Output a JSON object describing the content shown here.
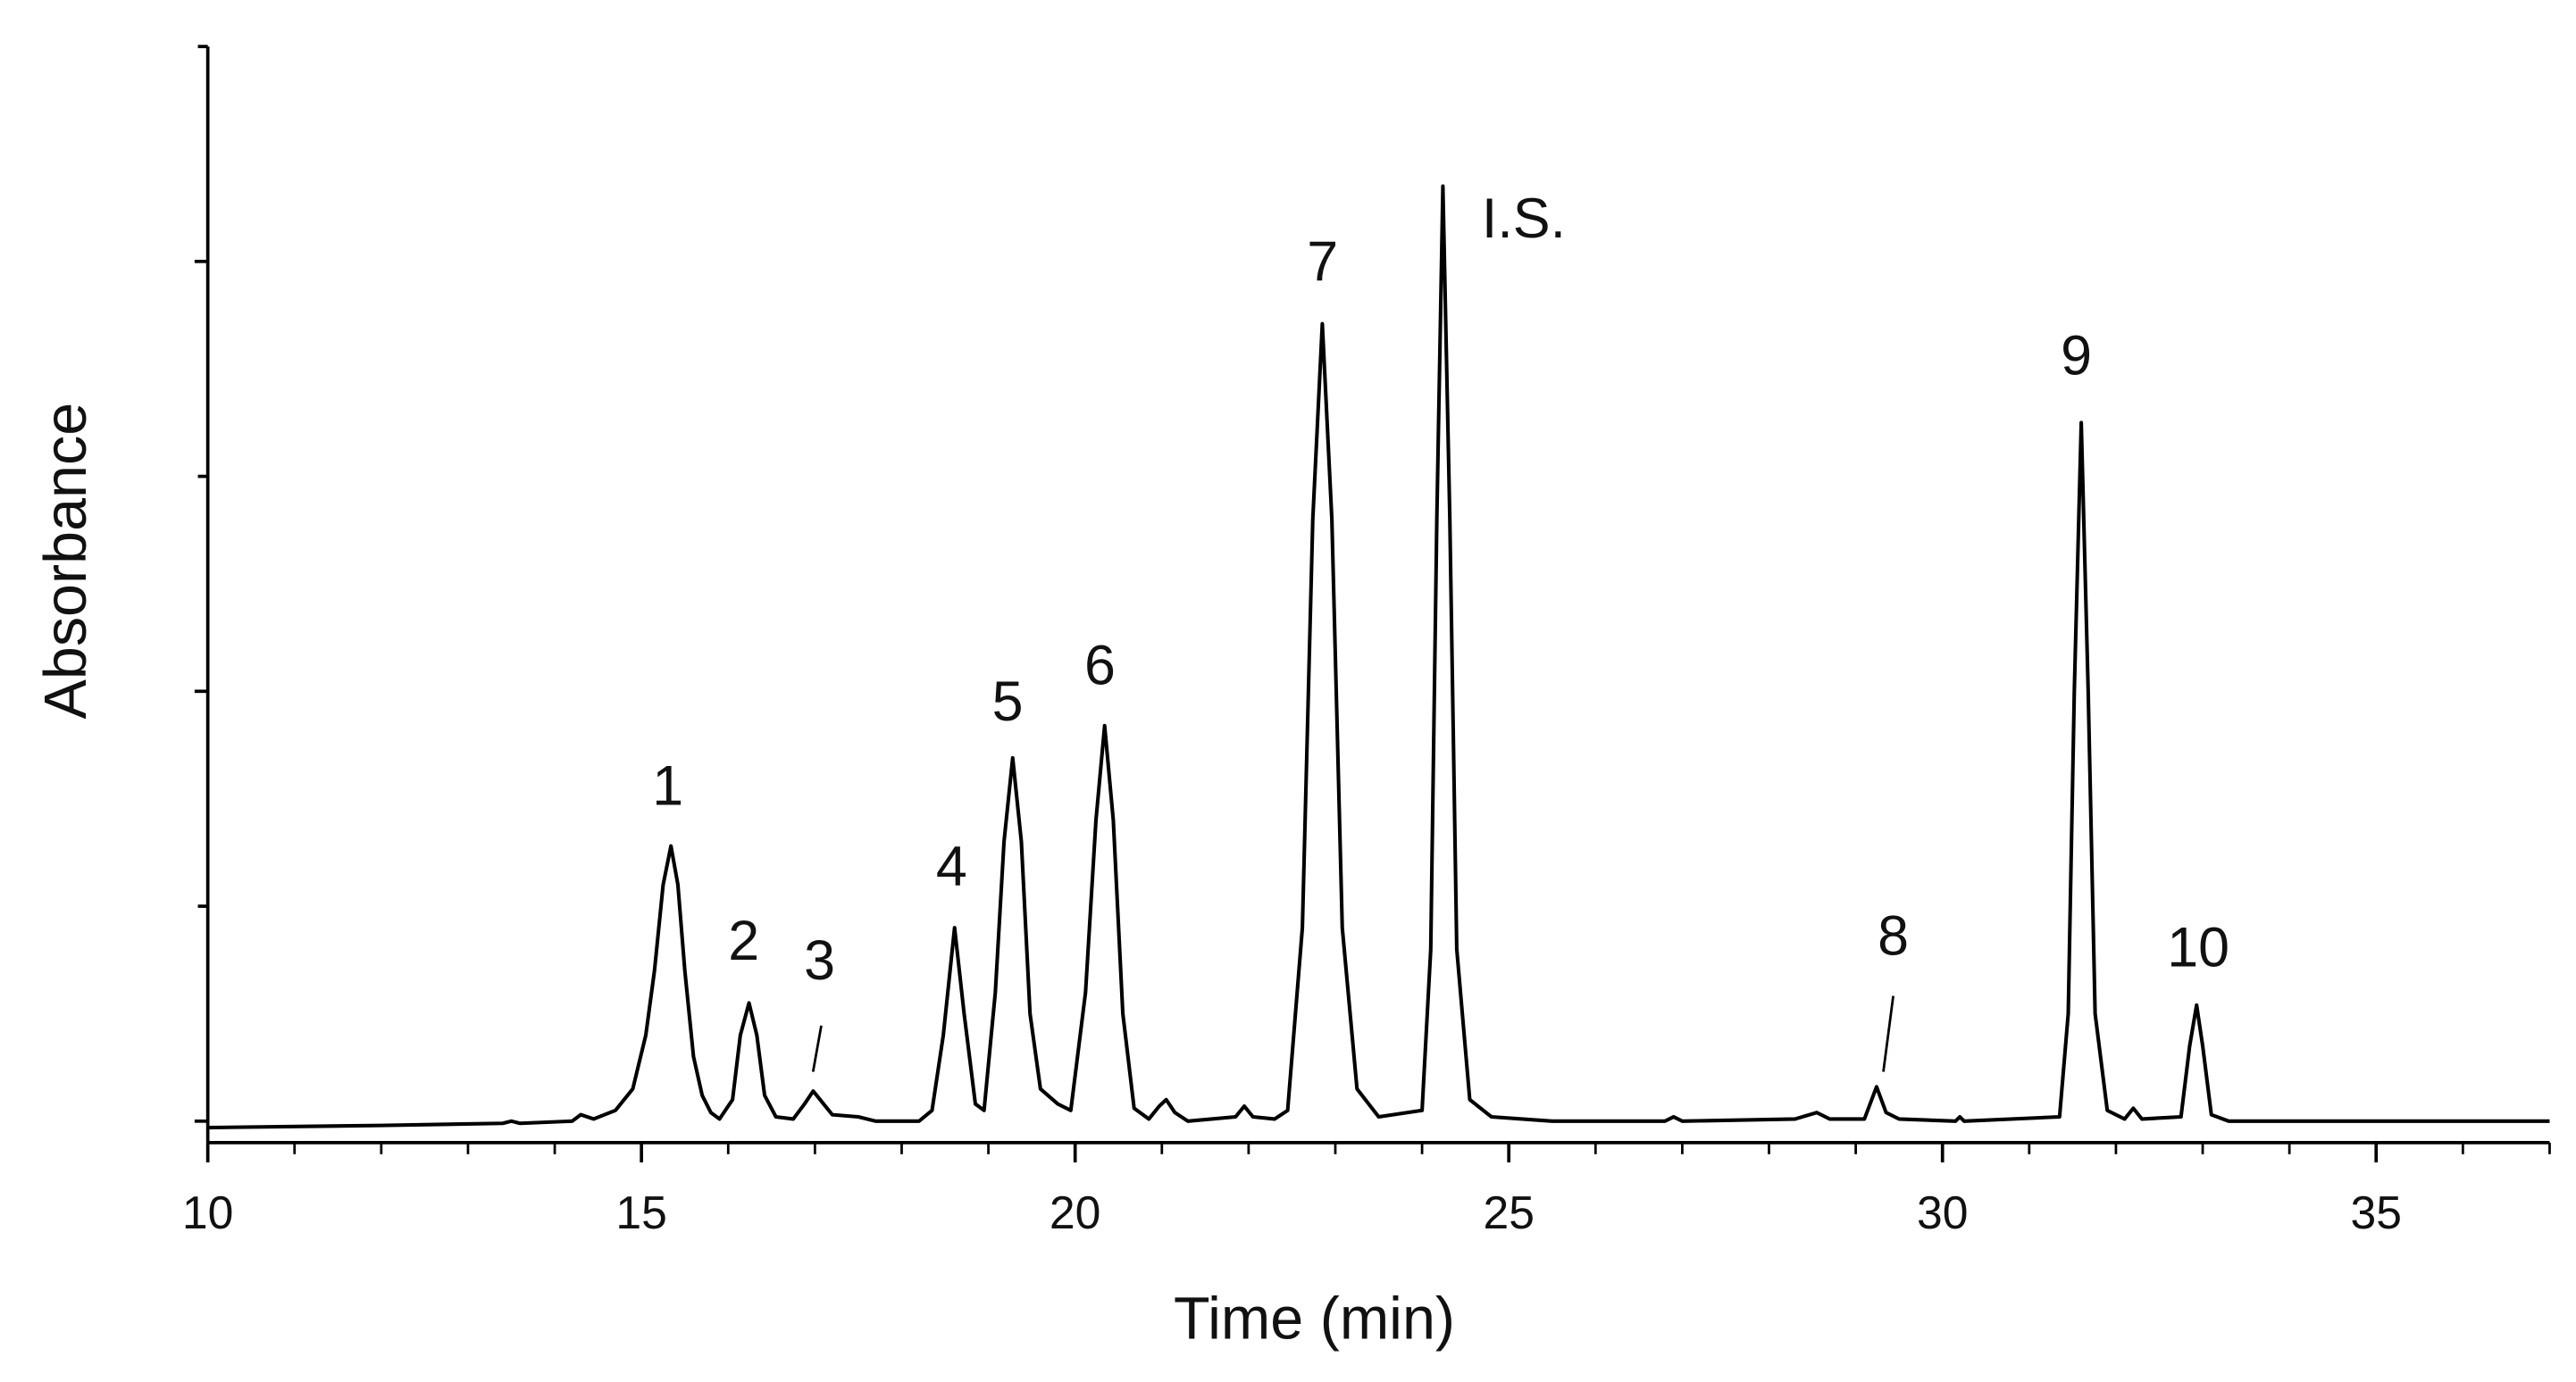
{
  "chart_data": {
    "type": "line",
    "x_label": "Time (min)",
    "y_label": "Absorbance",
    "xlim": [
      10,
      37
    ],
    "xticks": [
      10,
      15,
      20,
      25,
      30,
      35
    ],
    "xminorticks": [
      11,
      12,
      13,
      14,
      16,
      17,
      18,
      19,
      21,
      22,
      23,
      24,
      26,
      27,
      28,
      29,
      31,
      32,
      33,
      34,
      36,
      37
    ],
    "ylim": [
      -0.1,
      5
    ],
    "yticks": [
      0,
      1,
      2,
      3,
      4,
      5
    ],
    "series": [
      {
        "color": "#000000",
        "x": [
          10,
          12,
          13.4,
          13.5,
          13.6,
          14.2,
          14.3,
          14.45,
          14.7,
          14.9,
          15.05,
          15.15,
          15.25,
          15.34,
          15.42,
          15.5,
          15.6,
          15.7,
          15.8,
          15.9,
          16.05,
          16.14,
          16.24,
          16.33,
          16.42,
          16.55,
          16.75,
          16.88,
          16.98,
          17.08,
          17.2,
          17.5,
          17.7,
          18.2,
          18.35,
          18.48,
          18.61,
          18.72,
          18.85,
          18.95,
          19.08,
          19.18,
          19.28,
          19.38,
          19.48,
          19.6,
          19.8,
          19.95,
          20.12,
          20.24,
          20.34,
          20.44,
          20.55,
          20.68,
          20.85,
          20.97,
          21.05,
          21.15,
          21.3,
          21.85,
          21.95,
          22.05,
          22.3,
          22.45,
          22.62,
          22.74,
          22.85,
          22.96,
          23.08,
          23.25,
          23.5,
          24.0,
          24.1,
          24.17,
          24.24,
          24.32,
          24.4,
          24.55,
          24.8,
          25.5,
          26.8,
          26.9,
          27.0,
          28.3,
          28.55,
          28.7,
          29.1,
          29.24,
          29.35,
          29.5,
          30.15,
          30.2,
          30.25,
          31.35,
          31.45,
          31.52,
          31.6,
          31.68,
          31.76,
          31.9,
          32.1,
          32.2,
          32.3,
          32.75,
          32.85,
          32.93,
          33.0,
          33.1,
          33.3,
          37
        ],
        "values": [
          -0.03,
          -0.02,
          -0.01,
          0.0,
          -0.01,
          0.0,
          0.03,
          0.01,
          0.05,
          0.15,
          0.4,
          0.7,
          1.1,
          1.28,
          1.1,
          0.7,
          0.3,
          0.12,
          0.04,
          0.01,
          0.1,
          0.4,
          0.55,
          0.4,
          0.12,
          0.02,
          0.01,
          0.08,
          0.14,
          0.09,
          0.03,
          0.02,
          0.0,
          0.0,
          0.05,
          0.4,
          0.9,
          0.5,
          0.08,
          0.05,
          0.6,
          1.3,
          1.69,
          1.3,
          0.5,
          0.15,
          0.08,
          0.05,
          0.6,
          1.4,
          1.84,
          1.4,
          0.5,
          0.06,
          0.01,
          0.07,
          0.1,
          0.04,
          0.0,
          0.02,
          0.07,
          0.02,
          0.01,
          0.05,
          0.9,
          2.8,
          3.71,
          2.8,
          0.9,
          0.15,
          0.02,
          0.05,
          0.8,
          2.8,
          4.35,
          2.8,
          0.8,
          0.1,
          0.02,
          0.0,
          0.0,
          0.02,
          0.0,
          0.01,
          0.04,
          0.01,
          0.01,
          0.16,
          0.04,
          0.01,
          0.0,
          0.02,
          0.0,
          0.02,
          0.5,
          2.0,
          3.25,
          2.0,
          0.5,
          0.05,
          0.01,
          0.06,
          0.01,
          0.02,
          0.35,
          0.54,
          0.35,
          0.03,
          0.0,
          0.0
        ]
      }
    ],
    "annotations": [
      "1",
      "2",
      "3",
      "4",
      "5",
      "6",
      "7",
      "I.S.",
      "8",
      "9",
      "10"
    ]
  }
}
